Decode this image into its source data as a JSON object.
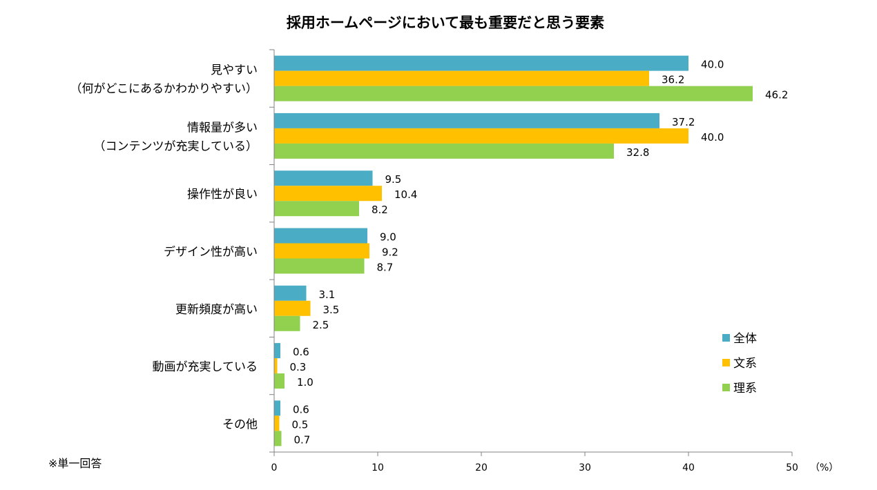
{
  "chart_data": {
    "type": "bar",
    "orientation": "horizontal",
    "title": "採用ホームページにおいて最も重要だと思う要素",
    "categories": [
      [
        "見やすい",
        "（何がどこにあるかわかりやすい）"
      ],
      [
        "情報量が多い",
        "（コンテンツが充実している）"
      ],
      [
        "操作性が良い"
      ],
      [
        "デザイン性が高い"
      ],
      [
        "更新頻度が高い"
      ],
      [
        "動画が充実している"
      ],
      [
        "その他"
      ]
    ],
    "series": [
      {
        "name": "全体",
        "color": "#4BACC6",
        "values": [
          40.0,
          37.2,
          9.5,
          9.0,
          3.1,
          0.6,
          0.6
        ],
        "labels": [
          "40.0",
          "37.2",
          "9.5",
          "9.0",
          "3.1",
          "0.6",
          "0.6"
        ]
      },
      {
        "name": "文系",
        "color": "#FFC000",
        "values": [
          36.2,
          40.0,
          10.4,
          9.2,
          3.5,
          0.3,
          0.5
        ],
        "labels": [
          "36.2",
          "40.0",
          "10.4",
          "9.2",
          "3.5",
          "0.3",
          "0.5"
        ]
      },
      {
        "name": "理系",
        "color": "#92D050",
        "values": [
          46.2,
          32.8,
          8.2,
          8.7,
          2.5,
          1.0,
          0.7
        ],
        "labels": [
          "46.2",
          "32.8",
          "8.2",
          "8.7",
          "2.5",
          "1.0",
          "0.7"
        ]
      }
    ],
    "xlim": [
      0,
      50
    ],
    "xticks": [
      "0",
      "10",
      "20",
      "30",
      "40",
      "50"
    ],
    "unit_label": "（%）",
    "legend_position": "right",
    "note": "※単一回答",
    "grid": false
  }
}
